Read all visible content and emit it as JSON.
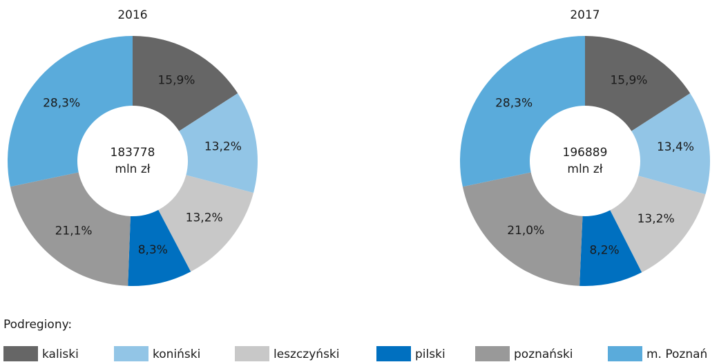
{
  "legend_title": "Podregiony:",
  "chart_data": [
    {
      "type": "pie",
      "title": "2016",
      "categories": [
        "kaliski",
        "koniński",
        "leszczyński",
        "pilski",
        "poznański",
        "m. Poznań"
      ],
      "colors": [
        "#666666",
        "#92c5e6",
        "#c8c8c8",
        "#0070c0",
        "#999999",
        "#5aabdb"
      ],
      "values": [
        15.9,
        13.2,
        13.2,
        8.3,
        21.1,
        28.3
      ],
      "value_labels": [
        "15,9%",
        "13,2%",
        "13,2%",
        "8,3%",
        "21,1%",
        "28,3%"
      ],
      "center_text": [
        "183778",
        "mln zł"
      ]
    },
    {
      "type": "pie",
      "title": "2017",
      "categories": [
        "kaliski",
        "koniński",
        "leszczyński",
        "pilski",
        "poznański",
        "m. Poznań"
      ],
      "colors": [
        "#666666",
        "#92c5e6",
        "#c8c8c8",
        "#0070c0",
        "#999999",
        "#5aabdb"
      ],
      "values": [
        15.9,
        13.4,
        13.2,
        8.2,
        21.0,
        28.3
      ],
      "value_labels": [
        "15,9%",
        "13,4%",
        "13,2%",
        "8,2%",
        "21,0%",
        "28,3%"
      ],
      "center_text": [
        "196889",
        "mln zł"
      ]
    }
  ]
}
